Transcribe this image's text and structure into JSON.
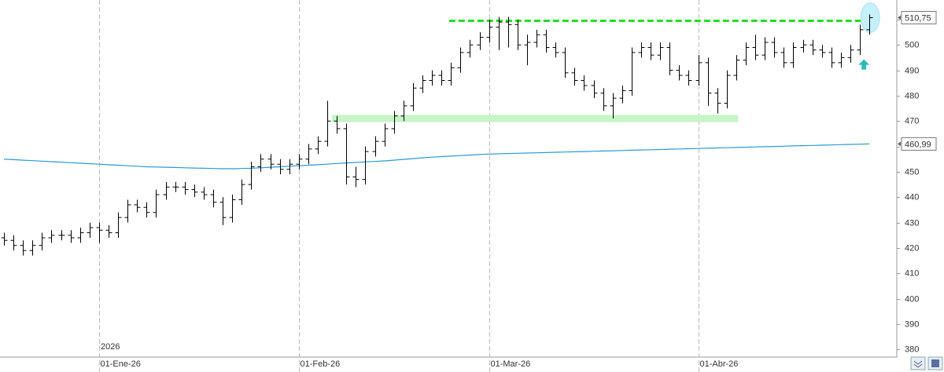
{
  "chart_data": {
    "type": "ohlc",
    "categories": [
      null,
      null,
      null,
      null,
      null,
      null,
      null,
      null,
      null,
      null,
      "01-Ene-26",
      null,
      null,
      null,
      null,
      null,
      null,
      null,
      null,
      null,
      null,
      null,
      null,
      null,
      null,
      null,
      null,
      null,
      null,
      null,
      null,
      "01-Feb-26",
      null,
      null,
      null,
      null,
      null,
      null,
      null,
      null,
      null,
      null,
      null,
      null,
      null,
      null,
      null,
      null,
      null,
      null,
      null,
      "01-Mar-26",
      null,
      null,
      null,
      null,
      null,
      null,
      null,
      null,
      null,
      null,
      null,
      null,
      null,
      null,
      null,
      null,
      null,
      null,
      null,
      null,
      null,
      "01-Abr-26",
      null,
      null,
      null,
      null,
      null,
      null,
      null,
      null,
      null,
      null,
      null,
      null,
      null,
      null,
      null,
      null,
      null,
      null
    ],
    "year_label": "2026",
    "open": [
      424,
      423,
      421,
      419,
      421,
      424,
      425,
      425,
      424,
      426,
      428,
      427,
      426,
      432,
      437,
      436,
      434,
      441,
      444,
      444,
      443,
      442,
      441,
      438,
      432,
      439,
      445,
      452,
      455,
      453,
      451,
      453,
      455,
      459,
      462,
      470,
      467,
      448,
      447,
      458,
      462,
      467,
      472,
      476,
      483,
      486,
      488,
      486,
      491,
      497,
      500,
      503,
      507,
      509,
      508,
      500,
      501,
      504,
      499,
      497,
      489,
      486,
      484,
      481,
      476,
      479,
      482,
      497,
      499,
      496,
      499,
      490,
      488,
      486,
      493,
      481,
      477,
      488,
      494,
      499,
      496,
      501,
      497,
      493,
      499,
      500,
      498,
      497,
      493,
      495,
      498,
      506
    ],
    "high": [
      426,
      425,
      423,
      423,
      426,
      427,
      427,
      427,
      428,
      430,
      430,
      429,
      434,
      439,
      439,
      438,
      443,
      446,
      446,
      446,
      445,
      444,
      443,
      440,
      441,
      447,
      454,
      457,
      457,
      455,
      455,
      457,
      461,
      464,
      478,
      472,
      469,
      452,
      460,
      464,
      469,
      474,
      478,
      485,
      488,
      490,
      490,
      493,
      499,
      502,
      505,
      510,
      511,
      511,
      510,
      504,
      506,
      506,
      501,
      499,
      491,
      488,
      486,
      483,
      481,
      484,
      499,
      501,
      501,
      501,
      501,
      492,
      490,
      496,
      495,
      483,
      490,
      496,
      501,
      504,
      503,
      503,
      499,
      501,
      502,
      502,
      500,
      499,
      497,
      500,
      508,
      512
    ],
    "low": [
      421,
      419,
      417,
      417,
      419,
      422,
      423,
      422,
      422,
      424,
      422,
      424,
      424,
      430,
      434,
      432,
      432,
      439,
      442,
      441,
      440,
      439,
      436,
      429,
      430,
      437,
      443,
      450,
      451,
      449,
      449,
      451,
      453,
      457,
      460,
      465,
      445,
      444,
      445,
      456,
      460,
      465,
      470,
      474,
      481,
      484,
      484,
      484,
      489,
      495,
      498,
      501,
      498,
      499,
      498,
      492,
      499,
      497,
      495,
      487,
      484,
      482,
      479,
      474,
      471,
      477,
      480,
      495,
      494,
      494,
      488,
      486,
      484,
      484,
      476,
      473,
      475,
      486,
      492,
      494,
      494,
      495,
      491,
      491,
      497,
      496,
      495,
      491,
      491,
      493,
      496,
      504
    ],
    "close": [
      423,
      421,
      419,
      421,
      424,
      425,
      425,
      424,
      426,
      428,
      427,
      426,
      432,
      437,
      436,
      434,
      441,
      444,
      444,
      443,
      442,
      441,
      438,
      432,
      439,
      445,
      452,
      455,
      453,
      451,
      453,
      455,
      459,
      462,
      470,
      467,
      448,
      447,
      458,
      462,
      467,
      472,
      476,
      483,
      486,
      488,
      486,
      491,
      497,
      500,
      503,
      507,
      509,
      508,
      500,
      501,
      504,
      499,
      497,
      489,
      486,
      484,
      481,
      476,
      479,
      482,
      497,
      499,
      496,
      499,
      490,
      488,
      486,
      493,
      481,
      477,
      488,
      494,
      499,
      496,
      501,
      497,
      493,
      499,
      500,
      498,
      497,
      493,
      495,
      498,
      506,
      510.75
    ],
    "ma": [
      455,
      454.8,
      454.6,
      454.4,
      454.2,
      454,
      453.8,
      453.6,
      453.4,
      453.2,
      453,
      452.8,
      452.6,
      452.4,
      452.2,
      452,
      451.9,
      451.8,
      451.7,
      451.6,
      451.5,
      451.4,
      451.3,
      451.2,
      451.2,
      451.3,
      451.4,
      451.6,
      451.8,
      452,
      452.2,
      452.4,
      452.6,
      452.8,
      453,
      453.3,
      453.5,
      453.7,
      453.9,
      454.1,
      454.3,
      454.6,
      454.9,
      455.2,
      455.5,
      455.8,
      456,
      456.2,
      456.4,
      456.6,
      456.8,
      457,
      457.1,
      457.2,
      457.3,
      457.4,
      457.5,
      457.6,
      457.7,
      457.8,
      457.9,
      458,
      458.1,
      458.2,
      458.3,
      458.4,
      458.5,
      458.6,
      458.7,
      458.8,
      458.9,
      459,
      459.1,
      459.2,
      459.3,
      459.4,
      459.5,
      459.6,
      459.7,
      459.8,
      459.9,
      460,
      460.1,
      460.2,
      460.3,
      460.4,
      460.5,
      460.6,
      460.7,
      460.8,
      460.9,
      460.99
    ],
    "bar_color": "#000000",
    "ma_color": "#2a9bd0",
    "last_price": {
      "value": 510.75,
      "label": "510,75"
    },
    "ma_last": {
      "value": 460.99,
      "label": "460,99"
    },
    "resistance_level": 509.5,
    "resistance_color": "#22dd22",
    "support_level": 471,
    "support_color": "#c6f5c6",
    "ylim": [
      377,
      517.7
    ],
    "yticks": [
      380,
      390,
      400,
      410,
      420,
      430,
      440,
      450,
      460,
      470,
      480,
      490,
      500,
      510
    ]
  }
}
